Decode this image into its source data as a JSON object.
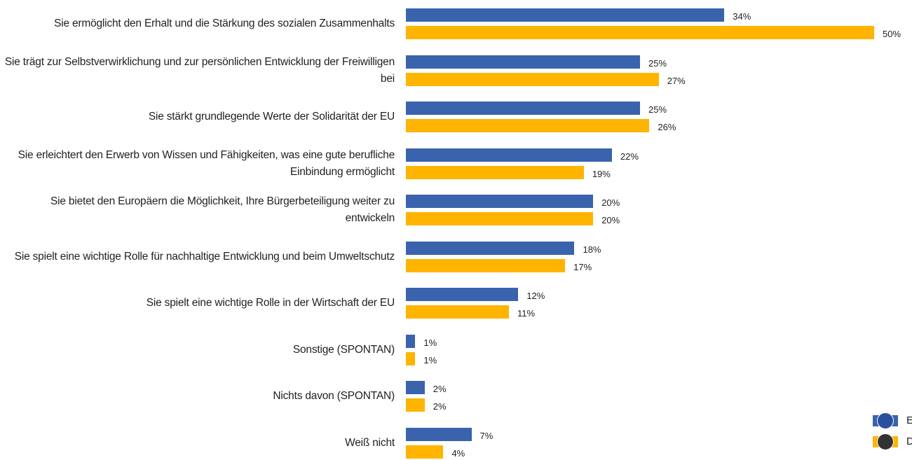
{
  "chart_data": {
    "type": "bar",
    "orientation": "horizontal",
    "categories": [
      "Sie ermöglicht den Erhalt und die Stärkung des sozialen Zusammenhalts",
      "Sie trägt zur Selbstverwirklichung und zur persönlichen Entwicklung der Freiwilligen bei",
      "Sie stärkt grundlegende Werte der Solidarität der EU",
      "Sie erleichtert den Erwerb von Wissen und Fähigkeiten, was eine gute berufliche Einbindung ermöglicht",
      "Sie bietet den Europäern die Möglichkeit, Ihre Bürgerbeteiligung weiter zu entwickeln",
      "Sie spielt eine wichtige Rolle für nachhaltige Entwicklung und beim Umweltschutz",
      "Sie spielt eine wichtige Rolle in der Wirtschaft der EU",
      "Sonstige (SPONTAN)",
      "Nichts davon (SPONTAN)",
      "Weiß nicht"
    ],
    "series": [
      {
        "name": "E",
        "color": "#3a63ad",
        "values": [
          34,
          25,
          25,
          22,
          20,
          18,
          12,
          1,
          2,
          7
        ],
        "value_labels": [
          "34%",
          "25%",
          "25%",
          "22%",
          "20%",
          "18%",
          "12%",
          "1%",
          "2%",
          "7%"
        ]
      },
      {
        "name": "D",
        "color": "#ffb400",
        "values": [
          50,
          27,
          26,
          19,
          20,
          17,
          11,
          1,
          2,
          4
        ],
        "value_labels": [
          "50%",
          "27%",
          "26%",
          "19%",
          "20%",
          "17%",
          "11%",
          "1%",
          "2%",
          "4%"
        ]
      }
    ],
    "legend": "bottom-right"
  }
}
